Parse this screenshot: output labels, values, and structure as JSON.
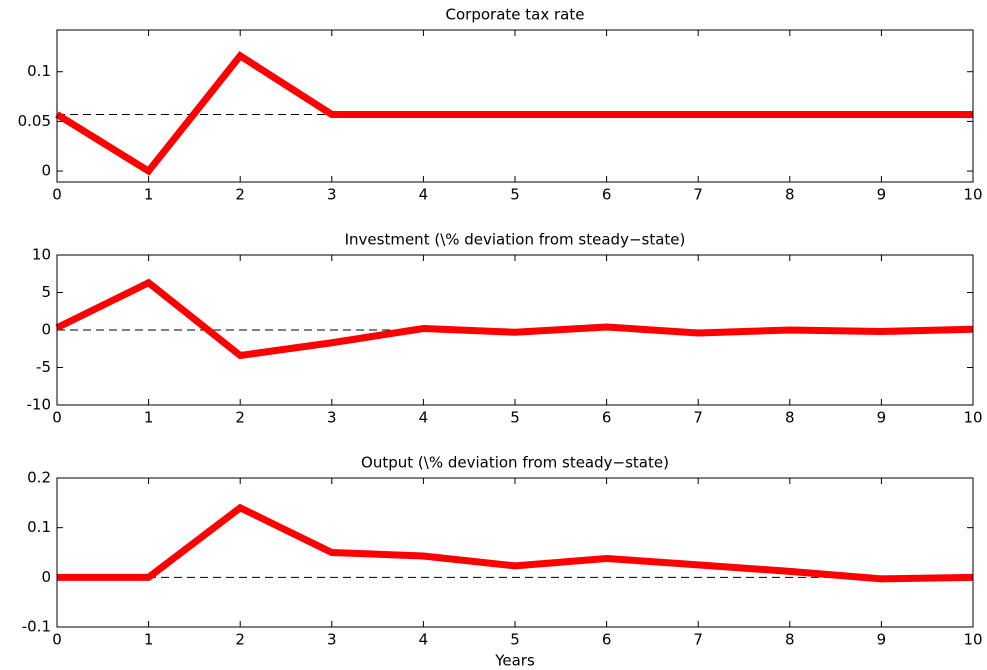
{
  "chart_data": [
    {
      "type": "line",
      "title": "Corporate tax rate",
      "x": [
        0,
        1,
        2,
        3,
        4,
        5,
        6,
        7,
        8,
        9,
        10
      ],
      "values": [
        0.057,
        0,
        0.116,
        0.057,
        0.057,
        0.057,
        0.057,
        0.057,
        0.057,
        0.057,
        0.057
      ],
      "color": "#ff0000",
      "reference_line": 0.057,
      "xlim": [
        0,
        10
      ],
      "xticks": [
        0,
        1,
        2,
        3,
        4,
        5,
        6,
        7,
        8,
        9,
        10
      ],
      "ylim": [
        -0.011,
        0.142
      ],
      "yticks": [
        0,
        0.05,
        0.1
      ]
    },
    {
      "type": "line",
      "title": "Investment (\\% deviation from steady−state)",
      "x": [
        0,
        1,
        2,
        3,
        4,
        5,
        6,
        7,
        8,
        9,
        10
      ],
      "values": [
        0.3,
        6.3,
        -3.4,
        -1.7,
        0.2,
        -0.3,
        0.4,
        -0.4,
        0,
        -0.2,
        0.1
      ],
      "color": "#ff0000",
      "reference_line": 0,
      "xlim": [
        0,
        10
      ],
      "xticks": [
        0,
        1,
        2,
        3,
        4,
        5,
        6,
        7,
        8,
        9,
        10
      ],
      "ylim": [
        -10,
        10
      ],
      "yticks": [
        -10,
        -5,
        0,
        5,
        10
      ]
    },
    {
      "type": "line",
      "title": "Output (\\% deviation from steady−state)",
      "xlabel": "Years",
      "x": [
        0,
        1,
        2,
        3,
        4,
        5,
        6,
        7,
        8,
        9,
        10
      ],
      "values": [
        0,
        0,
        0.14,
        0.05,
        0.043,
        0.023,
        0.038,
        0.025,
        0.012,
        -0.003,
        0
      ],
      "color": "#ff0000",
      "reference_line": 0,
      "xlim": [
        0,
        10
      ],
      "xticks": [
        0,
        1,
        2,
        3,
        4,
        5,
        6,
        7,
        8,
        9,
        10
      ],
      "ylim": [
        -0.1,
        0.2
      ],
      "yticks": [
        -0.1,
        0,
        0.1,
        0.2
      ]
    }
  ]
}
